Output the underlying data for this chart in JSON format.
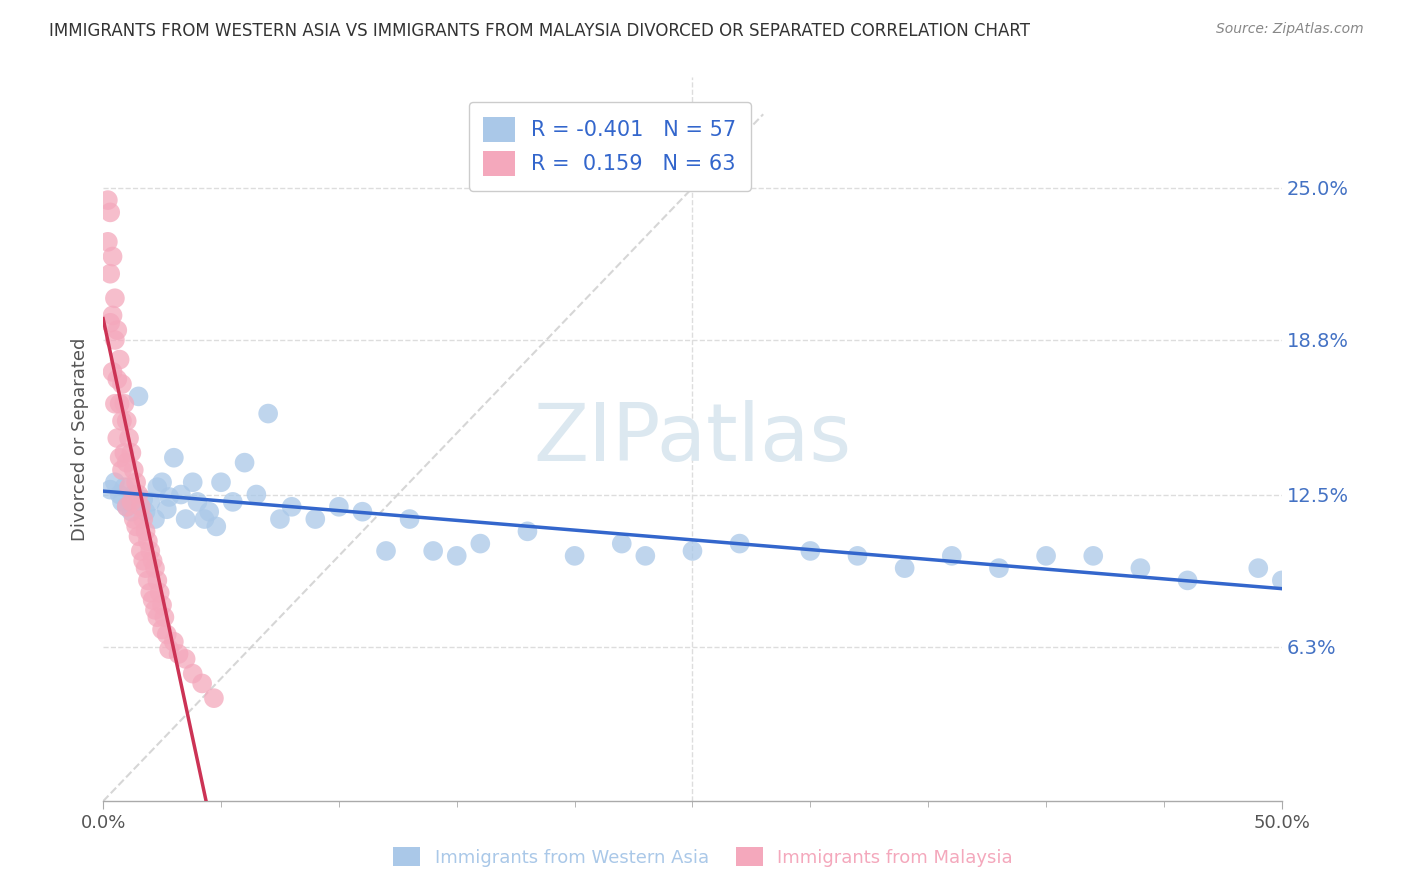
{
  "title": "IMMIGRANTS FROM WESTERN ASIA VS IMMIGRANTS FROM MALAYSIA DIVORCED OR SEPARATED CORRELATION CHART",
  "source": "Source: ZipAtlas.com",
  "xlabel_blue": "Immigrants from Western Asia",
  "xlabel_pink": "Immigrants from Malaysia",
  "ylabel": "Divorced or Separated",
  "xmin": 0.0,
  "xmax": 0.5,
  "ymin": 0.0,
  "ymax": 0.295,
  "yticks": [
    0.063,
    0.125,
    0.188,
    0.25
  ],
  "ytick_labels": [
    "6.3%",
    "12.5%",
    "18.8%",
    "25.0%"
  ],
  "xtick_positions": [
    0.0,
    0.5
  ],
  "xtick_labels": [
    "0.0%",
    "50.0%"
  ],
  "blue_R": -0.401,
  "blue_N": 57,
  "pink_R": 0.159,
  "pink_N": 63,
  "blue_color": "#aac8e8",
  "pink_color": "#f4a8bc",
  "blue_line_color": "#3366cc",
  "pink_line_color": "#cc3355",
  "ref_line_color": "#cccccc",
  "watermark": "ZIPatlas",
  "watermark_color": "#dce8f0",
  "grid_color": "#dddddd",
  "background_color": "#ffffff",
  "legend_label1": "R = -0.401   N = 57",
  "legend_label2": "R =  0.159   N = 63",
  "blue_scatter_x": [
    0.003,
    0.005,
    0.007,
    0.008,
    0.009,
    0.01,
    0.012,
    0.013,
    0.015,
    0.017,
    0.018,
    0.02,
    0.022,
    0.023,
    0.025,
    0.027,
    0.028,
    0.03,
    0.033,
    0.035,
    0.038,
    0.04,
    0.043,
    0.045,
    0.048,
    0.05,
    0.055,
    0.06,
    0.065,
    0.07,
    0.075,
    0.08,
    0.09,
    0.1,
    0.11,
    0.12,
    0.13,
    0.14,
    0.15,
    0.16,
    0.18,
    0.2,
    0.22,
    0.23,
    0.25,
    0.27,
    0.3,
    0.32,
    0.34,
    0.36,
    0.38,
    0.4,
    0.42,
    0.44,
    0.46,
    0.49,
    0.5
  ],
  "blue_scatter_y": [
    0.127,
    0.13,
    0.125,
    0.122,
    0.128,
    0.12,
    0.118,
    0.125,
    0.165,
    0.123,
    0.118,
    0.122,
    0.115,
    0.128,
    0.13,
    0.119,
    0.124,
    0.14,
    0.125,
    0.115,
    0.13,
    0.122,
    0.115,
    0.118,
    0.112,
    0.13,
    0.122,
    0.138,
    0.125,
    0.158,
    0.115,
    0.12,
    0.115,
    0.12,
    0.118,
    0.102,
    0.115,
    0.102,
    0.1,
    0.105,
    0.11,
    0.1,
    0.105,
    0.1,
    0.102,
    0.105,
    0.102,
    0.1,
    0.095,
    0.1,
    0.095,
    0.1,
    0.1,
    0.095,
    0.09,
    0.095,
    0.09
  ],
  "pink_scatter_x": [
    0.002,
    0.002,
    0.003,
    0.003,
    0.003,
    0.004,
    0.004,
    0.004,
    0.005,
    0.005,
    0.005,
    0.006,
    0.006,
    0.006,
    0.007,
    0.007,
    0.007,
    0.008,
    0.008,
    0.008,
    0.009,
    0.009,
    0.01,
    0.01,
    0.01,
    0.011,
    0.011,
    0.012,
    0.012,
    0.013,
    0.013,
    0.014,
    0.014,
    0.015,
    0.015,
    0.016,
    0.016,
    0.017,
    0.017,
    0.018,
    0.018,
    0.019,
    0.019,
    0.02,
    0.02,
    0.021,
    0.021,
    0.022,
    0.022,
    0.023,
    0.023,
    0.024,
    0.025,
    0.025,
    0.026,
    0.027,
    0.028,
    0.03,
    0.032,
    0.035,
    0.038,
    0.042,
    0.047
  ],
  "pink_scatter_y": [
    0.245,
    0.228,
    0.24,
    0.215,
    0.195,
    0.222,
    0.198,
    0.175,
    0.205,
    0.188,
    0.162,
    0.192,
    0.172,
    0.148,
    0.18,
    0.162,
    0.14,
    0.17,
    0.155,
    0.135,
    0.162,
    0.142,
    0.155,
    0.138,
    0.12,
    0.148,
    0.128,
    0.142,
    0.122,
    0.135,
    0.115,
    0.13,
    0.112,
    0.125,
    0.108,
    0.12,
    0.102,
    0.115,
    0.098,
    0.11,
    0.095,
    0.106,
    0.09,
    0.102,
    0.085,
    0.098,
    0.082,
    0.095,
    0.078,
    0.09,
    0.075,
    0.085,
    0.08,
    0.07,
    0.075,
    0.068,
    0.062,
    0.065,
    0.06,
    0.058,
    0.052,
    0.048,
    0.042
  ]
}
